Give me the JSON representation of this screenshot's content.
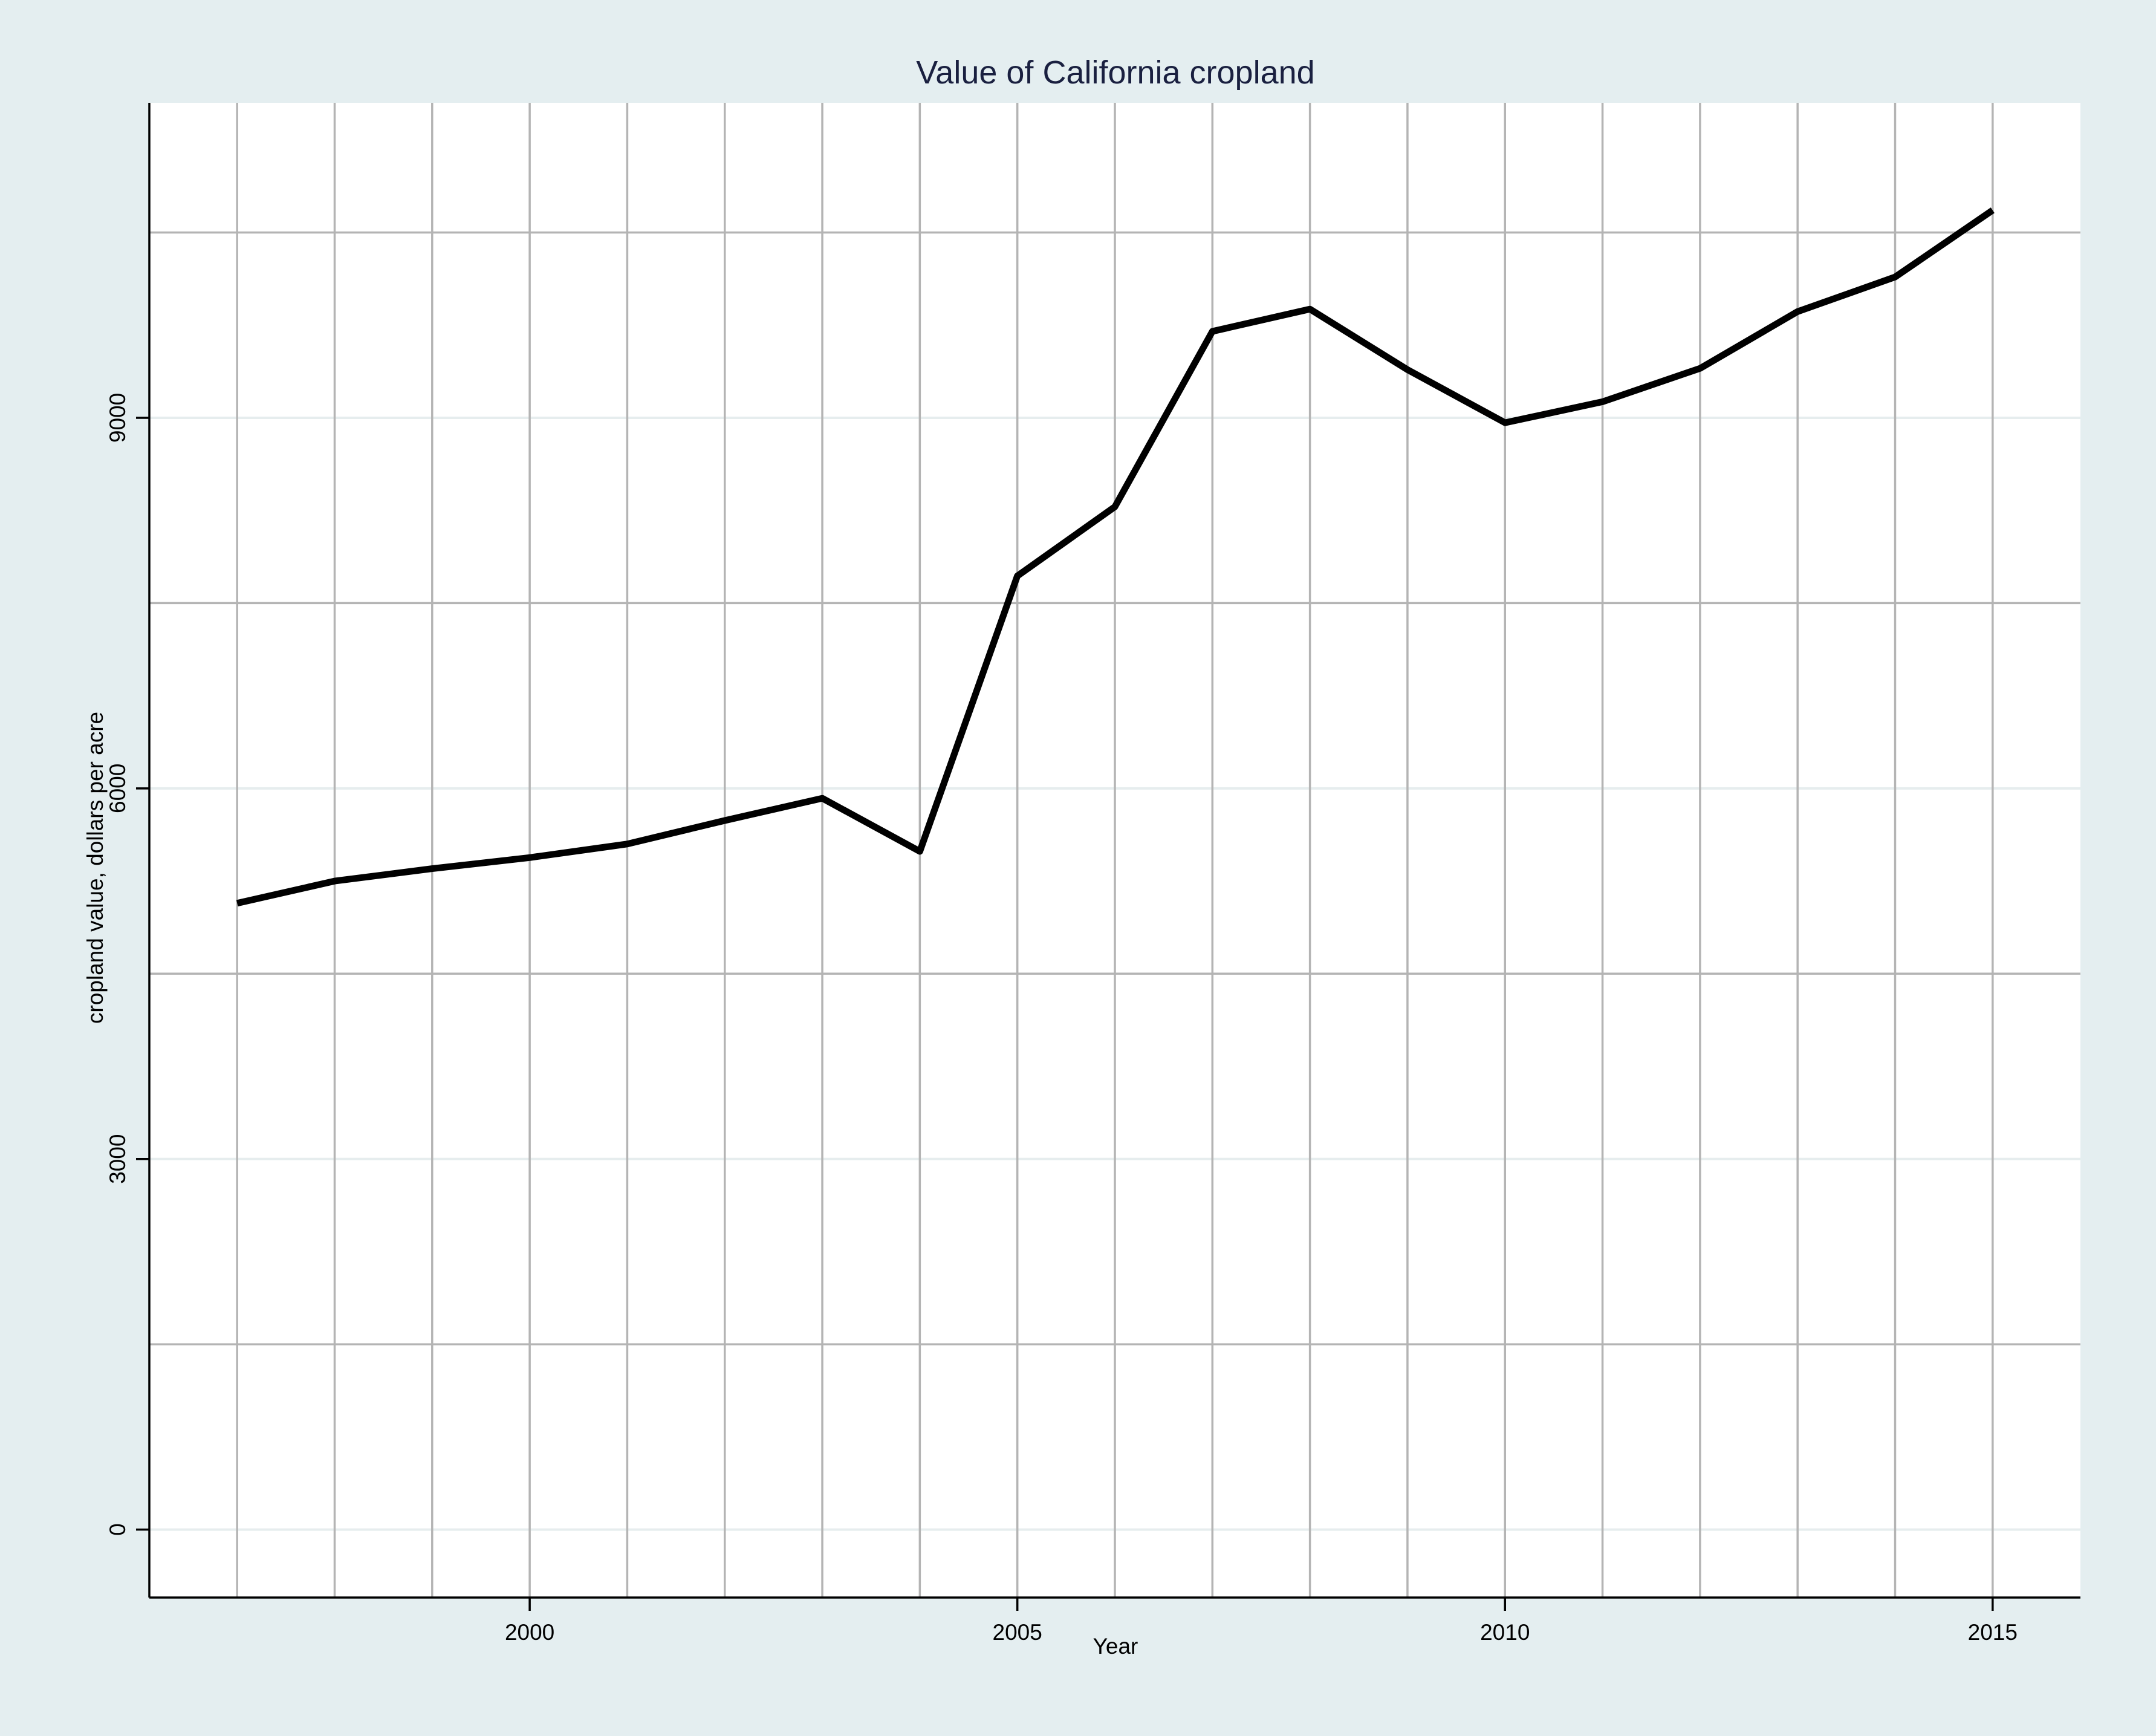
{
  "chart_data": {
    "type": "line",
    "title": "Value of California cropland",
    "xlabel": "Year",
    "ylabel": "cropland value, dollars per acre",
    "xlim": [
      1996.1,
      2015.9
    ],
    "ylim": [
      -550,
      11550
    ],
    "x_ticks": [
      2000,
      2005,
      2010,
      2015
    ],
    "y_ticks": [
      0,
      3000,
      6000,
      9000
    ],
    "x_grid": [
      1997,
      1998,
      1999,
      2000,
      2001,
      2002,
      2003,
      2004,
      2005,
      2006,
      2007,
      2008,
      2009,
      2010,
      2011,
      2012,
      2013,
      2014,
      2015
    ],
    "y_grid": [
      0,
      1500,
      3000,
      4500,
      6000,
      7500,
      9000,
      10500
    ],
    "grid": true,
    "colors": {
      "background": "#e4eef0",
      "plot_background": "#ffffff",
      "major_grid": "#e6edee",
      "minor_grid": "#b4b4b4",
      "line": "#000000",
      "title": "#1a2040",
      "axis": "#000000"
    },
    "series": [
      {
        "x": [
          1997,
          1998,
          1999,
          2000,
          2001,
          2002,
          2003,
          2004,
          2005,
          2006,
          2007,
          2008,
          2009,
          2010,
          2011,
          2012,
          2013,
          2014,
          2015
        ],
        "values": [
          5070,
          5250,
          5350,
          5440,
          5550,
          5740,
          5920,
          5490,
          7720,
          8280,
          9700,
          9880,
          9390,
          8960,
          9130,
          9400,
          9860,
          10140,
          10680
        ]
      }
    ]
  }
}
